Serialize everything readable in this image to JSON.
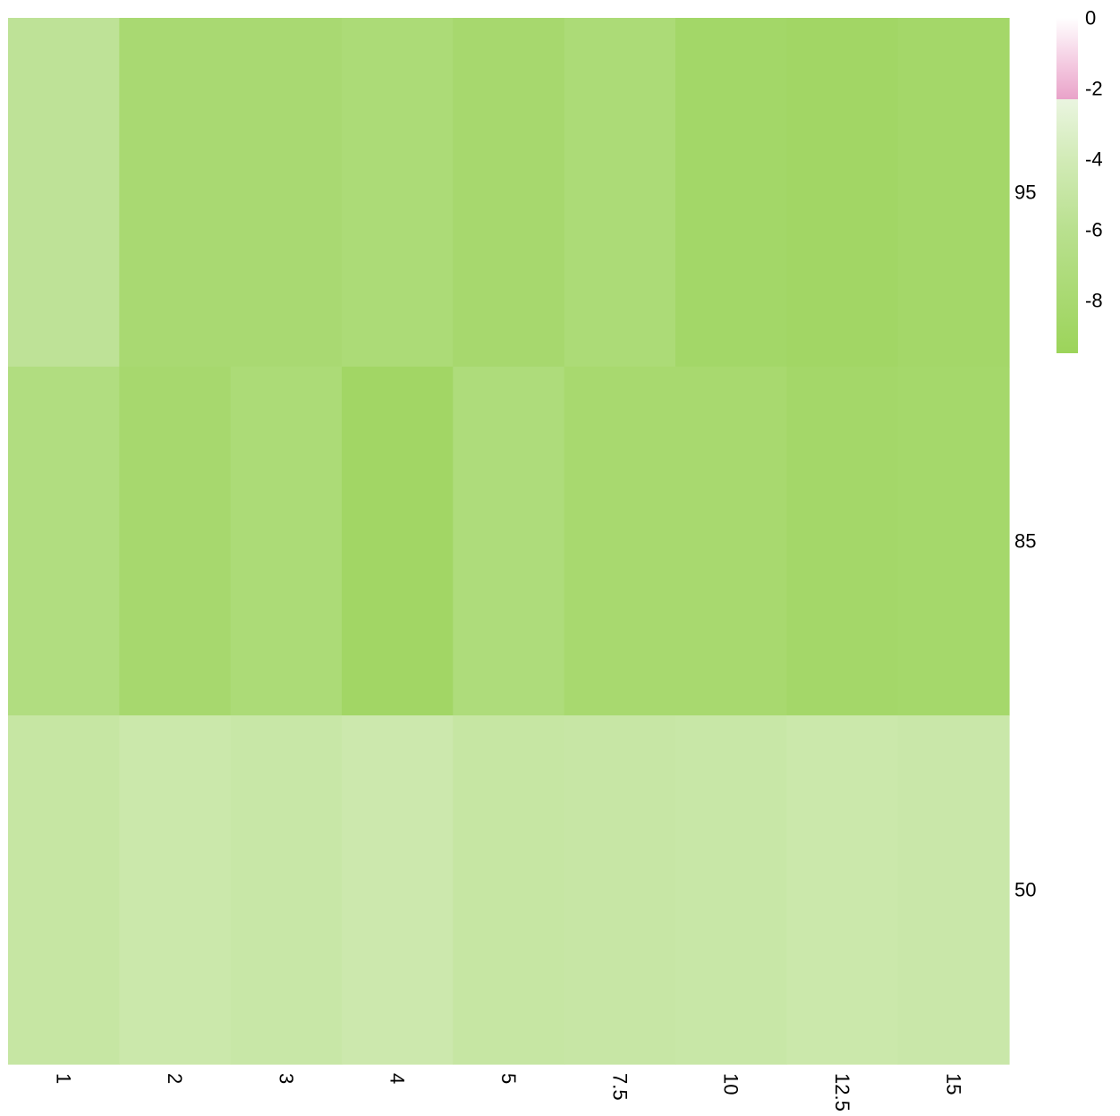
{
  "chart_data": {
    "type": "heatmap",
    "title": "",
    "xlabel": "",
    "ylabel": "",
    "x_categories": [
      "1",
      "2",
      "3",
      "4",
      "5",
      "7.5",
      "10",
      "12.5",
      "15"
    ],
    "y_categories": [
      "95",
      "85",
      "50"
    ],
    "values": [
      [
        -5.6,
        -7.9,
        -7.9,
        -7.6,
        -8.2,
        -7.6,
        -8.6,
        -8.8,
        -8.5
      ],
      [
        -7.0,
        -8.2,
        -7.6,
        -8.8,
        -7.3,
        -8.1,
        -8.1,
        -8.5,
        -8.4
      ],
      [
        -5.0,
        -4.6,
        -4.8,
        -4.5,
        -5.0,
        -4.9,
        -4.8,
        -4.6,
        -4.7
      ]
    ],
    "colorbar": {
      "ticks": [
        "0",
        "-2",
        "-4",
        "-6",
        "-8"
      ],
      "range": [
        -9.5,
        0
      ],
      "stops": [
        {
          "value": 0,
          "color": "#ffffff"
        },
        {
          "value": -1.5,
          "color": "#f2c2dc"
        },
        {
          "value": -2.3,
          "color": "#e9a3c9"
        },
        {
          "value": -2.31,
          "color": "#eaf5e0"
        },
        {
          "value": -4,
          "color": "#d2ebb7"
        },
        {
          "value": -6,
          "color": "#b9e08f"
        },
        {
          "value": -9.5,
          "color": "#9cd45a"
        }
      ]
    },
    "grid": false,
    "legend_position": "top-right"
  }
}
